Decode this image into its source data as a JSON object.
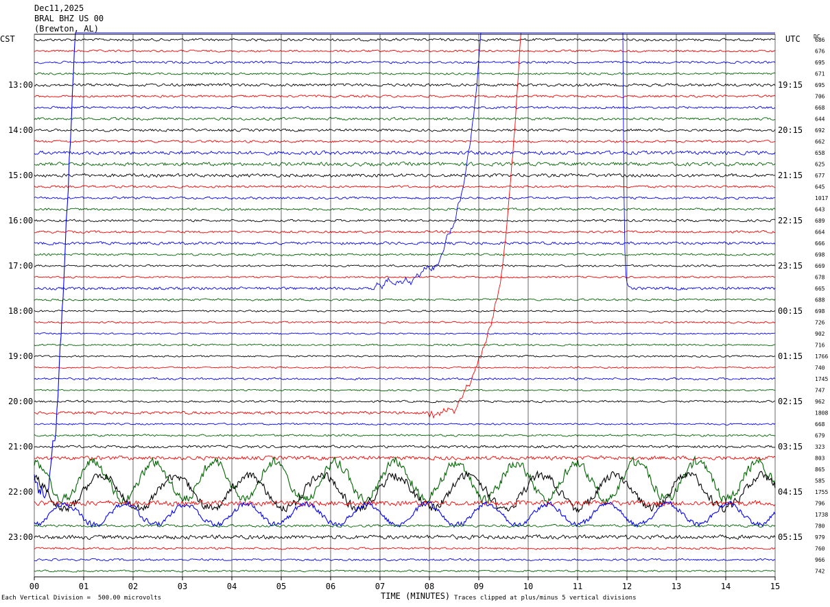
{
  "header": {
    "date": "Dec11,2025",
    "station": "BRAL BHZ US 00",
    "location": "(Brewton, AL)"
  },
  "labels": {
    "left_zone": "CST",
    "right_zone": "UTC",
    "dc": "DC",
    "x_axis_title": "TIME (MINUTES)",
    "vertical_division": "Each Vertical Division =  500.00 microvolts",
    "clipping_note": "Traces clipped at plus/minus 5 vertical divisions"
  },
  "colors": {
    "trace_cycle": [
      "#000000",
      "#ff0000",
      "#0000ff",
      "#006400"
    ],
    "grid": "#000000",
    "background": "#ffffff"
  },
  "chart_data": {
    "type": "line",
    "subtype": "helicorder seismogram",
    "x": {
      "label": "TIME (MINUTES)",
      "range": [
        0,
        15
      ],
      "ticks": [
        "00",
        "01",
        "02",
        "03",
        "04",
        "05",
        "06",
        "07",
        "08",
        "09",
        "10",
        "11",
        "12",
        "13",
        "14",
        "15"
      ]
    },
    "rows_per_hour": 4,
    "row_minutes": 15,
    "num_rows": 48,
    "left_hour_labels": [
      "13:00",
      "14:00",
      "15:00",
      "16:00",
      "17:00",
      "18:00",
      "19:00",
      "20:00",
      "21:00",
      "22:00",
      "23:00"
    ],
    "right_hour_labels": [
      "19:15",
      "20:15",
      "21:15",
      "22:15",
      "23:15",
      "00:15",
      "01:15",
      "02:15",
      "03:15",
      "04:15",
      "05:15"
    ],
    "hour_label_first_row": 4,
    "dc_offsets": [
      "686",
      "676",
      "695",
      "671",
      "695",
      "706",
      "668",
      "644",
      "692",
      "662",
      "658",
      "625",
      "677",
      "645",
      "1017",
      "643",
      "689",
      "664",
      "666",
      "698",
      "669",
      "678",
      "665",
      "688",
      "698",
      "726",
      "902",
      "716",
      "1766",
      "740",
      "1745",
      "747",
      "962",
      "1808",
      "668",
      "679",
      "323",
      "803",
      "865",
      "585",
      "1755",
      "796",
      "1738",
      "780",
      "979",
      "760",
      "966",
      "742"
    ],
    "row_activity": [
      1.0,
      0.8,
      0.9,
      0.8,
      1.1,
      0.9,
      0.9,
      1.0,
      1.0,
      0.9,
      1.4,
      1.4,
      1.3,
      0.9,
      0.9,
      0.9,
      0.9,
      0.9,
      1.1,
      0.8,
      0.8,
      0.7,
      1.1,
      0.8,
      0.7,
      0.7,
      0.6,
      0.7,
      0.7,
      0.6,
      0.8,
      0.6,
      0.8,
      1.1,
      0.7,
      0.8,
      1.0,
      1.5,
      3.5,
      4.0,
      3.5,
      2.0,
      2.2,
      1.0,
      1.6,
      0.8,
      0.8,
      0.7
    ],
    "notable_events": [
      {
        "row": 22,
        "start_min": 6.8,
        "end_min": 11.8,
        "description": "strong blue-trace burst"
      },
      {
        "row": 33,
        "start_min": 8.0,
        "end_min": 15.0,
        "description": "gap and drift"
      },
      {
        "row": 38,
        "start_min": 0.0,
        "end_min": 15.0,
        "description": "large low-frequency oscillations"
      }
    ],
    "grid": true,
    "legend": "none",
    "units": "microvolts per vertical division: 500.00"
  }
}
